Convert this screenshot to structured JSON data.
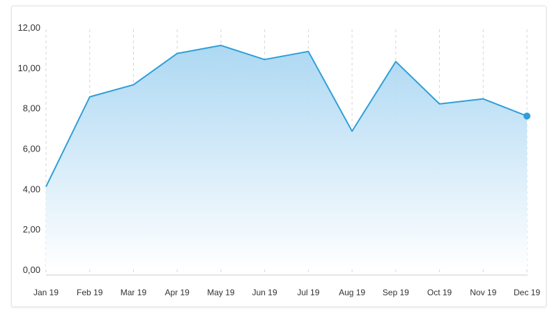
{
  "chart_data": {
    "type": "area",
    "title": "",
    "xlabel": "",
    "ylabel": "",
    "categories": [
      "Jan 19",
      "Feb 19",
      "Mar 19",
      "Apr 19",
      "May 19",
      "Jun 19",
      "Jul 19",
      "Aug 19",
      "Sep 19",
      "Oct 19",
      "Nov 19",
      "Dec 19"
    ],
    "series": [
      {
        "values": [
          4.1,
          8.55,
          9.15,
          10.7,
          11.1,
          10.4,
          10.8,
          6.85,
          10.3,
          8.2,
          8.45,
          7.6
        ]
      }
    ],
    "ylim": [
      0,
      12
    ],
    "yticks": [
      "0,00",
      "2,00",
      "4,00",
      "6,00",
      "8,00",
      "10,00",
      "12,00"
    ],
    "grid": {
      "vertical": true,
      "style": "dashed"
    },
    "legend": "none",
    "colors": {
      "line": "#2e9fd8",
      "fill_top": "#a9d6f2",
      "fill_bottom": "#ffffff",
      "grid": "#d5d5d5",
      "axis": "#cccccc",
      "text": "#333333"
    }
  }
}
